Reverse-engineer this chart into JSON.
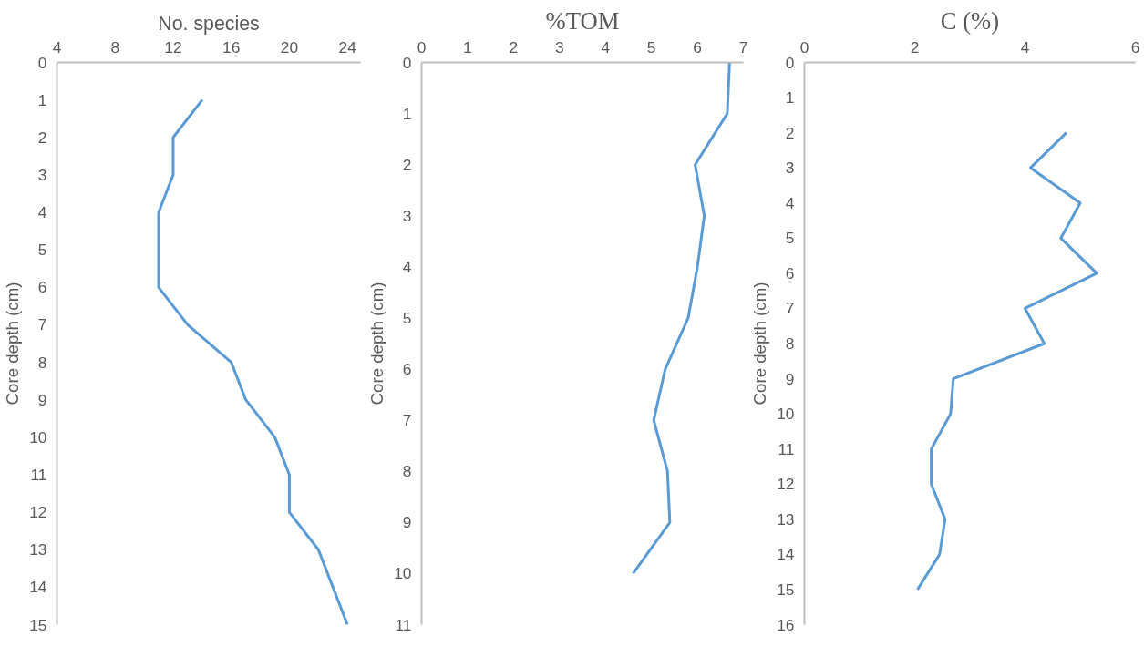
{
  "chart_data": [
    {
      "type": "line",
      "orientation": "horizontal",
      "title": "No. species",
      "ylabel": "Core depth (cm)",
      "xlim": [
        4,
        24.9
      ],
      "xticks": [
        4,
        8,
        12,
        16,
        20,
        24
      ],
      "ylim": [
        15,
        0
      ],
      "yticks": [
        0,
        1,
        2,
        3,
        4,
        5,
        6,
        7,
        8,
        9,
        10,
        11,
        12,
        13,
        14,
        15
      ],
      "grid": false,
      "x": [
        1,
        2,
        3,
        4,
        5,
        6,
        7,
        8,
        9,
        10,
        11,
        12,
        13,
        14,
        15
      ],
      "series": [
        {
          "color": "#5b9bd5",
          "values": [
            14,
            12,
            12,
            11,
            11,
            11,
            13,
            16,
            17,
            19,
            20,
            20,
            22,
            23,
            24
          ]
        }
      ]
    },
    {
      "type": "line",
      "orientation": "horizontal",
      "title": "%TOM",
      "ylabel": "Core depth (cm)",
      "xlim": [
        0,
        7
      ],
      "xticks": [
        0,
        1,
        2,
        3,
        4,
        5,
        6,
        7
      ],
      "ylim": [
        11,
        0
      ],
      "yticks": [
        0,
        1,
        2,
        3,
        4,
        5,
        6,
        7,
        8,
        9,
        10,
        11
      ],
      "grid": false,
      "x": [
        0,
        1,
        2,
        3,
        4,
        5,
        6,
        7,
        8,
        9,
        10
      ],
      "series": [
        {
          "color": "#5b9bd5",
          "values": [
            6.7,
            6.65,
            5.95,
            6.15,
            6.0,
            5.8,
            5.3,
            5.05,
            5.35,
            5.4,
            4.6
          ]
        }
      ]
    },
    {
      "type": "line",
      "orientation": "horizontal",
      "title": "C (%)",
      "ylabel": "Core depth (cm)",
      "xlim": [
        0,
        6
      ],
      "xticks": [
        0,
        2,
        4,
        6
      ],
      "ylim": [
        16,
        0
      ],
      "yticks": [
        0,
        1,
        2,
        3,
        4,
        5,
        6,
        7,
        8,
        9,
        10,
        11,
        12,
        13,
        14,
        15,
        16
      ],
      "grid": false,
      "x": [
        2,
        3,
        4,
        5,
        6,
        7,
        8,
        9,
        10,
        11,
        12,
        13,
        14,
        15
      ],
      "series": [
        {
          "color": "#5b9bd5",
          "values": [
            4.75,
            4.1,
            5.0,
            4.65,
            5.3,
            4.0,
            4.35,
            2.7,
            2.65,
            2.3,
            2.3,
            2.55,
            2.45,
            2.05
          ]
        }
      ]
    }
  ]
}
